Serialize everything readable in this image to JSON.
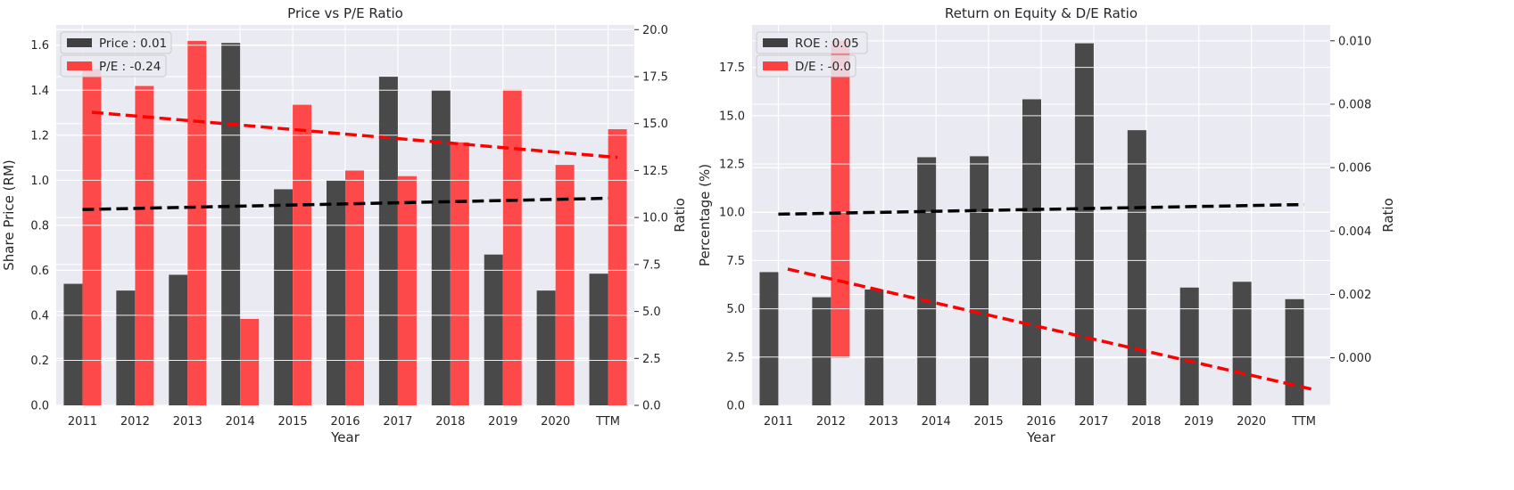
{
  "colors": {
    "background": "#eaeaf2",
    "grid": "#ffffff",
    "dark_series": "#404040",
    "red_series": "#ff4040",
    "dark_trend": "#000000",
    "red_trend": "#ff0000"
  },
  "chart_data": [
    {
      "type": "bar",
      "title": "Price vs P/E Ratio",
      "xlabel": "Year",
      "ylabel_left": "Share Price (RM)",
      "ylabel_right": "Ratio",
      "categories": [
        "2011",
        "2012",
        "2013",
        "2014",
        "2015",
        "2016",
        "2017",
        "2018",
        "2019",
        "2020",
        "TTM"
      ],
      "ylim_left": [
        0,
        1.69
      ],
      "yticks_left": [
        0.0,
        0.2,
        0.4,
        0.6,
        0.8,
        1.0,
        1.2,
        1.4,
        1.6
      ],
      "yticks_left_labels": [
        "0.0",
        "0.2",
        "0.4",
        "0.6",
        "0.8",
        "1.0",
        "1.2",
        "1.4",
        "1.6"
      ],
      "ylim_right": [
        0,
        20.25
      ],
      "yticks_right": [
        0.0,
        2.5,
        5.0,
        7.5,
        10.0,
        12.5,
        15.0,
        17.5,
        20.0
      ],
      "yticks_right_labels": [
        "0.0",
        "2.5",
        "5.0",
        "7.5",
        "10.0",
        "12.5",
        "15.0",
        "17.5",
        "20.0"
      ],
      "grid": true,
      "legend_position": "top-left",
      "series": [
        {
          "name": "Price : 0.01",
          "axis": "left",
          "color": "#404040",
          "values": [
            0.54,
            0.51,
            0.58,
            1.61,
            0.96,
            1.0,
            1.46,
            1.4,
            0.67,
            0.51,
            0.585
          ],
          "trend": [
            0.87,
            0.92
          ]
        },
        {
          "name": "P/E : -0.24",
          "axis": "right",
          "color": "#ff4040",
          "values": [
            17.9,
            17.0,
            19.4,
            4.6,
            16.0,
            12.5,
            12.2,
            14.0,
            16.8,
            12.8,
            14.7
          ],
          "trend": [
            15.6,
            13.2
          ]
        }
      ]
    },
    {
      "type": "bar",
      "title": "Return on Equity & D/E Ratio",
      "xlabel": "Year",
      "ylabel_left": "Percentage (%)",
      "ylabel_right": "Ratio",
      "categories": [
        "2011",
        "2012",
        "2013",
        "2014",
        "2015",
        "2016",
        "2017",
        "2018",
        "2019",
        "2020",
        "TTM"
      ],
      "ylim_left": [
        0,
        19.7
      ],
      "yticks_left": [
        0.0,
        2.5,
        5.0,
        7.5,
        10.0,
        12.5,
        15.0,
        17.5
      ],
      "yticks_left_labels": [
        "0.0",
        "2.5",
        "5.0",
        "7.5",
        "10.0",
        "12.5",
        "15.0",
        "17.5"
      ],
      "ylim_right": [
        -0.0015,
        0.0105
      ],
      "yticks_right": [
        0.0,
        0.002,
        0.004,
        0.006,
        0.008,
        0.01
      ],
      "yticks_right_labels": [
        "0.000",
        "0.002",
        "0.004",
        "0.006",
        "0.008",
        "0.010"
      ],
      "grid": true,
      "legend_position": "top-left",
      "series": [
        {
          "name": "ROE : 0.05",
          "axis": "left",
          "color": "#404040",
          "values": [
            6.9,
            5.6,
            6.0,
            12.85,
            12.9,
            15.85,
            18.75,
            14.25,
            6.1,
            6.4,
            5.5
          ],
          "trend": [
            9.9,
            10.4
          ]
        },
        {
          "name": "D/E : -0.0",
          "axis": "right",
          "color": "#ff4040",
          "values": [
            null,
            0.01,
            null,
            null,
            null,
            null,
            null,
            null,
            null,
            null,
            null
          ],
          "trend": [
            0.0028,
            -0.001
          ]
        }
      ]
    }
  ]
}
